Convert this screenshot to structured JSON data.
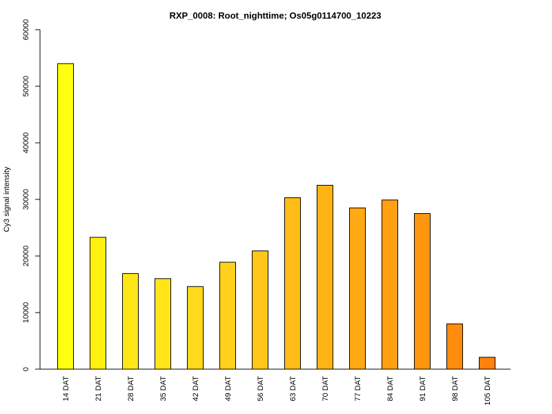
{
  "chart_data": {
    "type": "bar",
    "title": "RXP_0008: Root_nighttime; Os05g0114700_10223",
    "xlabel": "",
    "ylabel": "Cy3 signal intensity",
    "ylim": [
      0,
      60000
    ],
    "yticks": [
      "0",
      "10000",
      "20000",
      "30000",
      "40000",
      "50000",
      "60000"
    ],
    "categories": [
      "14 DAT",
      "21 DAT",
      "28 DAT",
      "35 DAT",
      "42 DAT",
      "49 DAT",
      "56 DAT",
      "63 DAT",
      "70 DAT",
      "77 DAT",
      "84 DAT",
      "91 DAT",
      "98 DAT",
      "105 DAT"
    ],
    "values": [
      54000,
      23300,
      16900,
      16000,
      14600,
      18900,
      20900,
      30300,
      32500,
      28500,
      29900,
      27500,
      8000,
      2100
    ],
    "colors": [
      "#ffff0f",
      "#fff00f",
      "#ffe617",
      "#ffe51a",
      "#ffd91c",
      "#ffd11c",
      "#ffc71a",
      "#ffbc17",
      "#ffb414",
      "#ffaa14",
      "#ffa011",
      "#ff960f",
      "#ff8c0c",
      "#ff820a"
    ],
    "grid": false,
    "legend": "none"
  }
}
